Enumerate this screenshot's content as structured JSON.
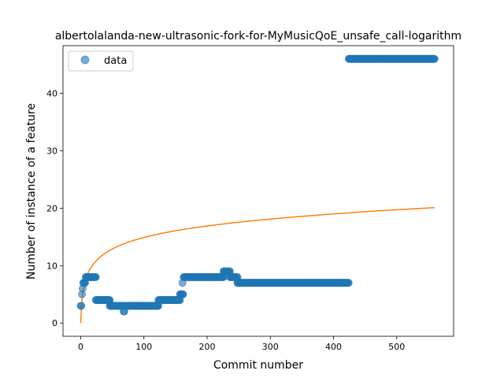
{
  "chart_data": {
    "type": "scatter",
    "title": "albertolalanda-new-ultrasonic-fork-for-MyMusicQoE_unsafe_call-logarithm",
    "xlabel": "Commit number",
    "ylabel": "Number of instance of a feature",
    "xlim": [
      -28,
      590
    ],
    "ylim": [
      -2.3,
      48.3
    ],
    "xticks": [
      0,
      100,
      200,
      300,
      400,
      500
    ],
    "yticks": [
      0,
      10,
      20,
      30,
      40
    ],
    "grid": false,
    "legend": {
      "position": "upper-left",
      "entries": [
        "data"
      ]
    },
    "colors": {
      "points": "#1f77b4",
      "fit": "#ff7f0e"
    },
    "series": [
      {
        "name": "data",
        "kind": "points",
        "segments": [
          {
            "x_start": 0,
            "x_end": 1,
            "y": 3
          },
          {
            "x_start": 2,
            "x_end": 2,
            "y": 5
          },
          {
            "x_start": 3,
            "x_end": 3,
            "y": 6
          },
          {
            "x_start": 4,
            "x_end": 5,
            "y": 7
          },
          {
            "x_start": 6,
            "x_end": 7,
            "y": 7
          },
          {
            "x_start": 8,
            "x_end": 24,
            "y": 8
          },
          {
            "x_start": 24,
            "x_end": 46,
            "y": 4
          },
          {
            "x_start": 46,
            "x_end": 67,
            "y": 3
          },
          {
            "x_start": 68,
            "x_end": 69,
            "y": 2
          },
          {
            "x_start": 70,
            "x_end": 123,
            "y": 3
          },
          {
            "x_start": 123,
            "x_end": 157,
            "y": 4
          },
          {
            "x_start": 157,
            "x_end": 162,
            "y": 5
          },
          {
            "x_start": 161,
            "x_end": 161,
            "y": 7
          },
          {
            "x_start": 163,
            "x_end": 226,
            "y": 8
          },
          {
            "x_start": 226,
            "x_end": 236,
            "y": 9
          },
          {
            "x_start": 236,
            "x_end": 248,
            "y": 8
          },
          {
            "x_start": 248,
            "x_end": 424,
            "y": 7
          },
          {
            "x_start": 424,
            "x_end": 560,
            "y": 46
          }
        ]
      },
      {
        "name": "",
        "kind": "line",
        "fit": "logarithmic",
        "x_range": [
          0,
          560
        ],
        "points_sample": [
          [
            0,
            0
          ],
          [
            10,
            8.3
          ],
          [
            50,
            12.9
          ],
          [
            100,
            14.9
          ],
          [
            200,
            16.9
          ],
          [
            300,
            18.1
          ],
          [
            400,
            19.0
          ],
          [
            560,
            20.1
          ]
        ]
      }
    ]
  }
}
